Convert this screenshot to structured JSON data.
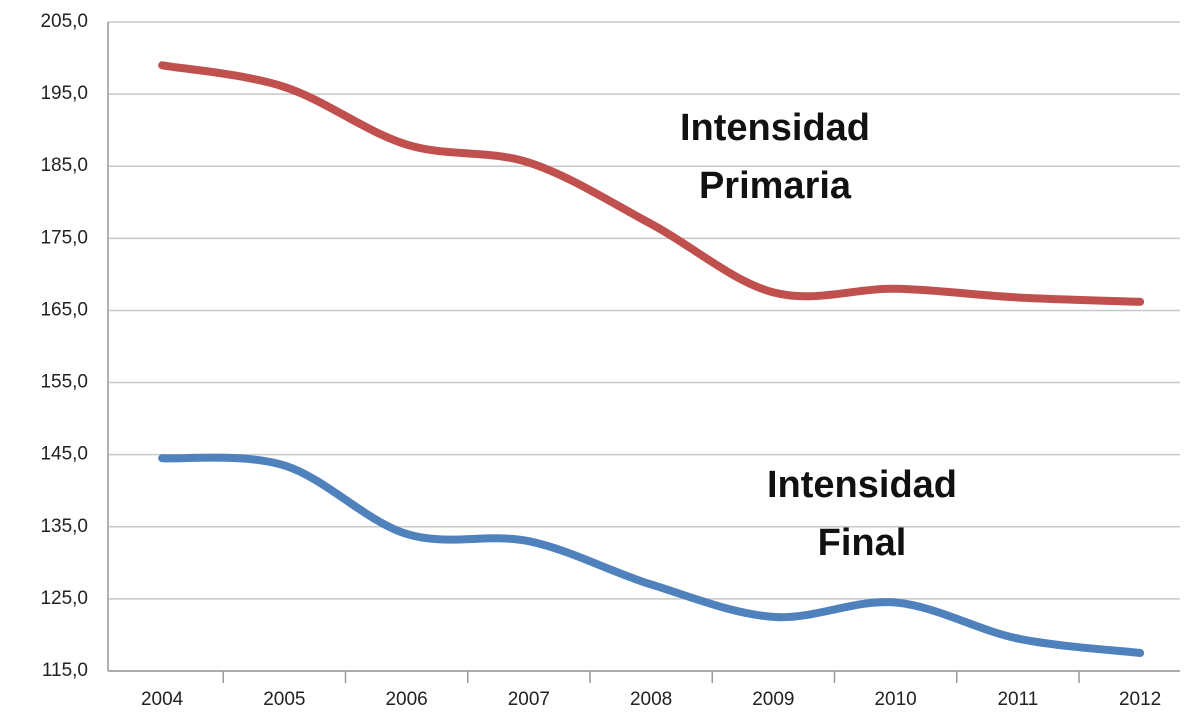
{
  "chart_data": {
    "type": "line",
    "categories": [
      "2004",
      "2005",
      "2006",
      "2007",
      "2008",
      "2009",
      "2010",
      "2011",
      "2012"
    ],
    "series": [
      {
        "color": "#c0504d",
        "values": [
          199.0,
          196.0,
          188.0,
          185.5,
          177.0,
          167.5,
          168.0,
          166.8,
          166.2
        ]
      },
      {
        "color": "#4f81bd",
        "values": [
          144.5,
          143.5,
          134.0,
          133.0,
          127.0,
          122.5,
          124.5,
          119.5,
          117.5
        ]
      }
    ],
    "ylim": [
      115,
      205
    ],
    "yticks": [
      {
        "value": 115,
        "label": "115,0"
      },
      {
        "value": 125,
        "label": "125,0"
      },
      {
        "value": 135,
        "label": "135,0"
      },
      {
        "value": 145,
        "label": "145,0"
      },
      {
        "value": 155,
        "label": "155,0"
      },
      {
        "value": 165,
        "label": "165,0"
      },
      {
        "value": 175,
        "label": "175,0"
      },
      {
        "value": 185,
        "label": "185,0"
      },
      {
        "value": 195,
        "label": "195,0"
      },
      {
        "value": 205,
        "label": "205,0"
      }
    ],
    "grid": true,
    "annotations": [
      [
        "Intensidad",
        "Primaria"
      ],
      [
        "Intensidad",
        "Final"
      ]
    ]
  }
}
